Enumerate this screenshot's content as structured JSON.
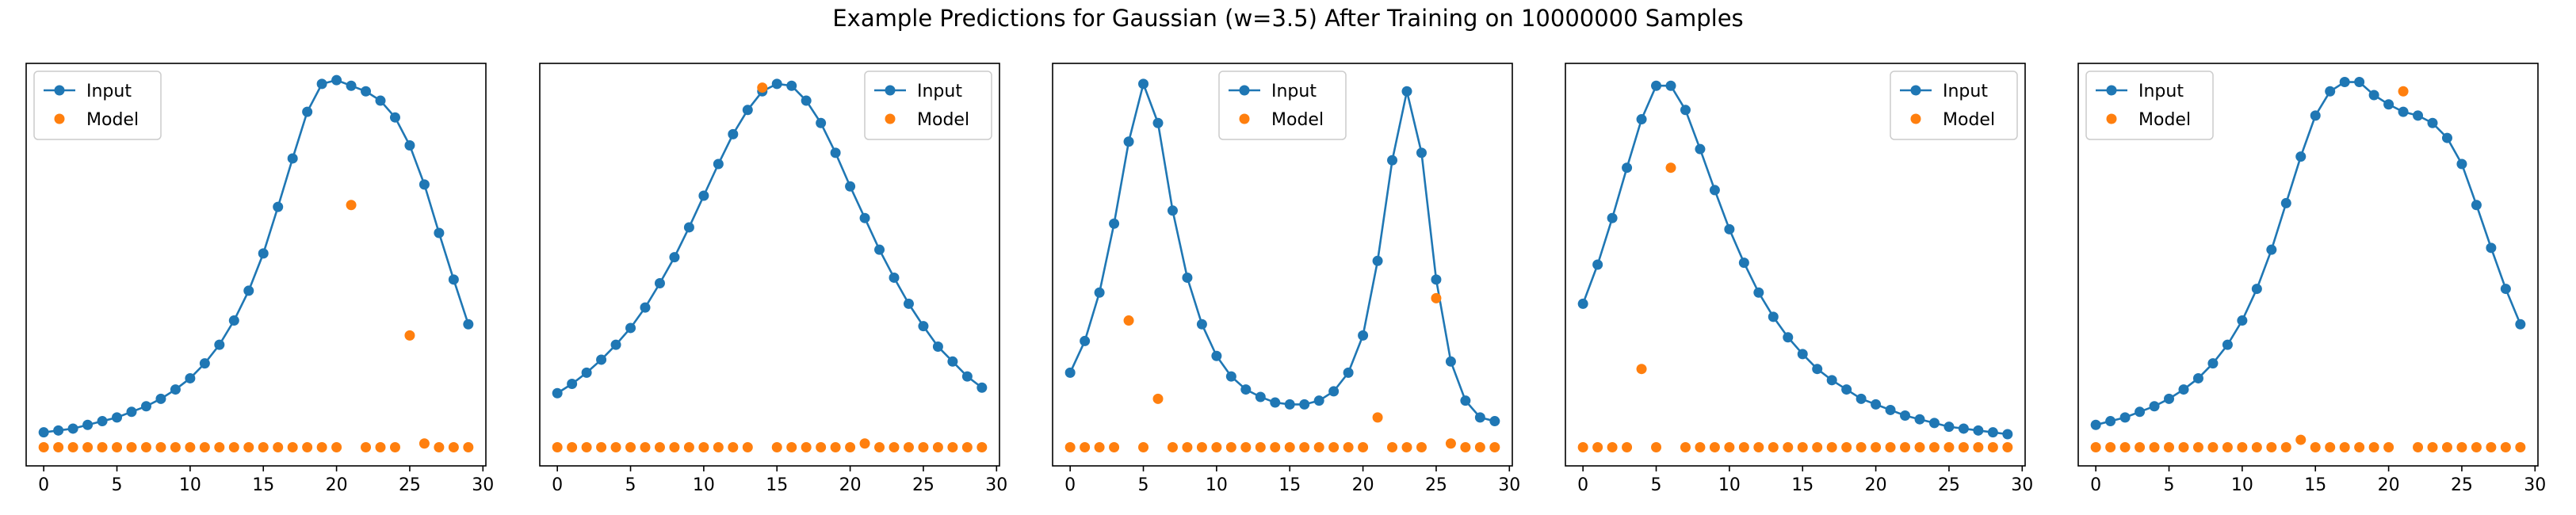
{
  "title": "Example Predictions for Gaussian (w=3.5) After Training on 10000000 Samples",
  "colors": {
    "input": "#1f77b4",
    "model": "#ff7f0e"
  },
  "chart_data": [
    {
      "type": "line",
      "x": [
        0,
        1,
        2,
        3,
        4,
        5,
        6,
        7,
        8,
        9,
        10,
        11,
        12,
        13,
        14,
        15,
        16,
        17,
        18,
        19,
        20,
        21,
        22,
        23,
        24,
        25,
        26,
        27,
        28,
        29
      ],
      "series": [
        {
          "name": "Input",
          "style": "line-marker",
          "values": [
            0.04,
            0.045,
            0.05,
            0.06,
            0.07,
            0.08,
            0.095,
            0.11,
            0.13,
            0.155,
            0.185,
            0.225,
            0.275,
            0.34,
            0.42,
            0.52,
            0.645,
            0.775,
            0.9,
            0.975,
            0.985,
            0.97,
            0.955,
            0.93,
            0.885,
            0.81,
            0.705,
            0.575,
            0.45,
            0.33
          ]
        },
        {
          "name": "Model",
          "style": "marker",
          "values": [
            0,
            0,
            0,
            0,
            0,
            0,
            0,
            0,
            0,
            0,
            0,
            0,
            0,
            0,
            0,
            0,
            0,
            0,
            0,
            0,
            0,
            0.65,
            0,
            0,
            0,
            0.3,
            0.01,
            0,
            0,
            0
          ]
        }
      ],
      "xlim": [
        -1.2,
        30.2
      ],
      "ylim": [
        -0.05,
        1.03
      ],
      "xticks": [
        0,
        5,
        10,
        15,
        20,
        25,
        30
      ],
      "legend": "upper left"
    },
    {
      "type": "line",
      "x": [
        0,
        1,
        2,
        3,
        4,
        5,
        6,
        7,
        8,
        9,
        10,
        11,
        12,
        13,
        14,
        15,
        16,
        17,
        18,
        19,
        20,
        21,
        22,
        23,
        24,
        25,
        26,
        27,
        28,
        29
      ],
      "series": [
        {
          "name": "Input",
          "style": "line-marker",
          "values": [
            0.145,
            0.17,
            0.2,
            0.235,
            0.275,
            0.32,
            0.375,
            0.44,
            0.51,
            0.59,
            0.675,
            0.76,
            0.84,
            0.905,
            0.955,
            0.975,
            0.97,
            0.93,
            0.87,
            0.79,
            0.7,
            0.615,
            0.53,
            0.455,
            0.385,
            0.325,
            0.27,
            0.23,
            0.19,
            0.16
          ]
        },
        {
          "name": "Model",
          "style": "marker",
          "values": [
            0,
            0,
            0,
            0,
            0,
            0,
            0,
            0,
            0,
            0,
            0,
            0,
            0,
            0,
            0.965,
            0,
            0,
            0,
            0,
            0,
            0,
            0.01,
            0,
            0,
            0,
            0,
            0,
            0,
            0,
            0
          ]
        }
      ],
      "xlim": [
        -1.2,
        30.2
      ],
      "ylim": [
        -0.05,
        1.03
      ],
      "xticks": [
        0,
        5,
        10,
        15,
        20,
        25,
        30
      ],
      "legend": "upper right"
    },
    {
      "type": "line",
      "x": [
        0,
        1,
        2,
        3,
        4,
        5,
        6,
        7,
        8,
        9,
        10,
        11,
        12,
        13,
        14,
        15,
        16,
        17,
        18,
        19,
        20,
        21,
        22,
        23,
        24,
        25,
        26,
        27,
        28,
        29
      ],
      "series": [
        {
          "name": "Input",
          "style": "line-marker",
          "values": [
            0.2,
            0.285,
            0.415,
            0.6,
            0.82,
            0.975,
            0.87,
            0.635,
            0.455,
            0.33,
            0.245,
            0.19,
            0.155,
            0.135,
            0.12,
            0.115,
            0.115,
            0.125,
            0.15,
            0.2,
            0.3,
            0.5,
            0.77,
            0.955,
            0.79,
            0.45,
            0.23,
            0.125,
            0.08,
            0.07
          ]
        },
        {
          "name": "Model",
          "style": "marker",
          "values": [
            0,
            0,
            0,
            0,
            0.34,
            0,
            0.13,
            0,
            0,
            0,
            0,
            0,
            0,
            0,
            0,
            0,
            0,
            0,
            0,
            0,
            0,
            0.08,
            0,
            0,
            0,
            0.4,
            0.01,
            0,
            0,
            0
          ]
        }
      ],
      "xlim": [
        -1.2,
        30.2
      ],
      "ylim": [
        -0.05,
        1.03
      ],
      "xticks": [
        0,
        5,
        10,
        15,
        20,
        25,
        30
      ],
      "legend": "upper center"
    },
    {
      "type": "line",
      "x": [
        0,
        1,
        2,
        3,
        4,
        5,
        6,
        7,
        8,
        9,
        10,
        11,
        12,
        13,
        14,
        15,
        16,
        17,
        18,
        19,
        20,
        21,
        22,
        23,
        24,
        25,
        26,
        27,
        28,
        29
      ],
      "series": [
        {
          "name": "Input",
          "style": "line-marker",
          "values": [
            0.385,
            0.49,
            0.615,
            0.75,
            0.88,
            0.97,
            0.97,
            0.905,
            0.8,
            0.69,
            0.585,
            0.495,
            0.415,
            0.35,
            0.295,
            0.25,
            0.21,
            0.18,
            0.155,
            0.13,
            0.115,
            0.1,
            0.085,
            0.075,
            0.065,
            0.055,
            0.05,
            0.045,
            0.04,
            0.035
          ]
        },
        {
          "name": "Model",
          "style": "marker",
          "values": [
            0,
            0,
            0,
            0,
            0.21,
            0,
            0.75,
            0,
            0,
            0,
            0,
            0,
            0,
            0,
            0,
            0,
            0,
            0,
            0,
            0,
            0,
            0,
            0,
            0,
            0,
            0,
            0,
            0,
            0,
            0
          ]
        }
      ],
      "xlim": [
        -1.2,
        30.2
      ],
      "ylim": [
        -0.05,
        1.03
      ],
      "xticks": [
        0,
        5,
        10,
        15,
        20,
        25,
        30
      ],
      "legend": "upper right"
    },
    {
      "type": "line",
      "x": [
        0,
        1,
        2,
        3,
        4,
        5,
        6,
        7,
        8,
        9,
        10,
        11,
        12,
        13,
        14,
        15,
        16,
        17,
        18,
        19,
        20,
        21,
        22,
        23,
        24,
        25,
        26,
        27,
        28,
        29
      ],
      "series": [
        {
          "name": "Input",
          "style": "line-marker",
          "values": [
            0.06,
            0.07,
            0.08,
            0.095,
            0.11,
            0.13,
            0.155,
            0.185,
            0.225,
            0.275,
            0.34,
            0.425,
            0.53,
            0.655,
            0.78,
            0.89,
            0.955,
            0.98,
            0.98,
            0.945,
            0.92,
            0.9,
            0.89,
            0.87,
            0.83,
            0.76,
            0.65,
            0.535,
            0.425,
            0.33
          ]
        },
        {
          "name": "Model",
          "style": "marker",
          "values": [
            0,
            0,
            0,
            0,
            0,
            0,
            0,
            0,
            0,
            0,
            0,
            0,
            0,
            0,
            0.02,
            0,
            0,
            0,
            0,
            0,
            0,
            0.955,
            0,
            0,
            0,
            0,
            0,
            0,
            0,
            0
          ]
        }
      ],
      "xlim": [
        -1.2,
        30.2
      ],
      "ylim": [
        -0.05,
        1.03
      ],
      "xticks": [
        0,
        5,
        10,
        15,
        20,
        25,
        30
      ],
      "legend": "upper left"
    }
  ]
}
